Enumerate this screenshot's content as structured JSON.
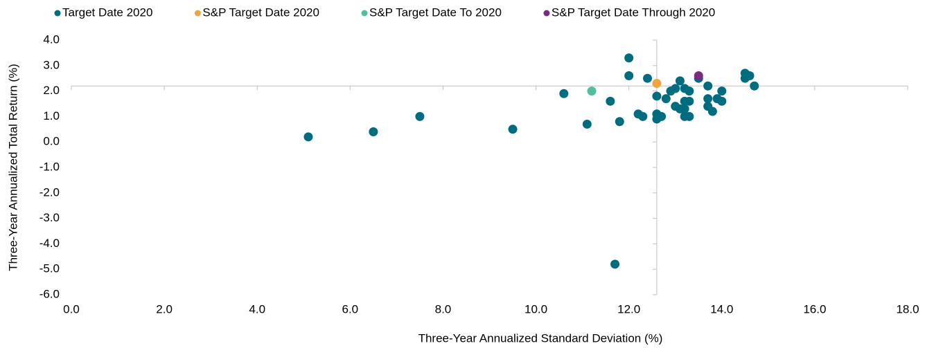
{
  "chart_data": {
    "type": "scatter",
    "x_label": "Three-Year Annualized Standard Deviation (%)",
    "y_label": "Three-Year Annualized Total Return (%)",
    "xlim": [
      0,
      18
    ],
    "ylim": [
      -6,
      4
    ],
    "xticks": [
      {
        "value": 0,
        "label": "0.0"
      },
      {
        "value": 2,
        "label": "2.0"
      },
      {
        "value": 4,
        "label": "4.0"
      },
      {
        "value": 6,
        "label": "6.0"
      },
      {
        "value": 8,
        "label": "8.0"
      },
      {
        "value": 10,
        "label": "10.0"
      },
      {
        "value": 12,
        "label": "12.0"
      },
      {
        "value": 14,
        "label": "14.0"
      },
      {
        "value": 16,
        "label": "16.0"
      },
      {
        "value": 18,
        "label": "18.0"
      }
    ],
    "yticks": [
      {
        "value": -6,
        "label": "-6.0"
      },
      {
        "value": -5,
        "label": "-5.0"
      },
      {
        "value": -4,
        "label": "-4.0"
      },
      {
        "value": -3,
        "label": "-3.0"
      },
      {
        "value": -2,
        "label": "-2.0"
      },
      {
        "value": -1,
        "label": "-1.0"
      },
      {
        "value": 0,
        "label": "0.0"
      },
      {
        "value": 1,
        "label": "1.0"
      },
      {
        "value": 2,
        "label": "2.0"
      },
      {
        "value": 3,
        "label": "3.0"
      },
      {
        "value": 4,
        "label": "4.0"
      }
    ],
    "x_axis_crosses_y_at": 2.2,
    "y_axis_crosses_x_at": 12.6,
    "legend": "top",
    "series": [
      {
        "name": "Target Date 2020",
        "color": "#006c80",
        "x": [
          5.1,
          6.5,
          7.5,
          9.5,
          10.6,
          11.1,
          11.6,
          11.8,
          11.7,
          12.0,
          12.0,
          12.2,
          12.3,
          12.4,
          12.6,
          12.6,
          12.6,
          12.7,
          12.8,
          12.9,
          13.0,
          13.0,
          13.1,
          13.1,
          13.2,
          13.2,
          13.2,
          13.3,
          13.2,
          13.3,
          13.3,
          13.5,
          13.7,
          13.7,
          13.7,
          13.8,
          13.9,
          14.0,
          14.0,
          14.5,
          14.5,
          14.6,
          14.7
        ],
        "values": [
          0.2,
          0.4,
          1.0,
          0.5,
          1.9,
          0.7,
          1.6,
          0.8,
          -4.8,
          3.3,
          2.6,
          1.1,
          1.0,
          2.5,
          1.8,
          1.1,
          0.9,
          1.0,
          1.7,
          2.0,
          2.1,
          1.4,
          1.3,
          2.4,
          2.1,
          1.3,
          1.0,
          1.0,
          1.6,
          2.0,
          1.6,
          2.5,
          2.2,
          1.7,
          1.4,
          1.2,
          1.7,
          2.0,
          1.6,
          2.7,
          2.5,
          2.6,
          2.2
        ]
      },
      {
        "name": "S&P Target Date 2020",
        "color": "#f0a640",
        "x": [
          12.6
        ],
        "values": [
          2.3
        ]
      },
      {
        "name": "S&P Target Date To 2020",
        "color": "#4fbf9f",
        "x": [
          11.2
        ],
        "values": [
          2.0
        ]
      },
      {
        "name": "S&P Target Date Through 2020",
        "color": "#7b2a84",
        "x": [
          13.5
        ],
        "values": [
          2.6
        ]
      }
    ]
  }
}
